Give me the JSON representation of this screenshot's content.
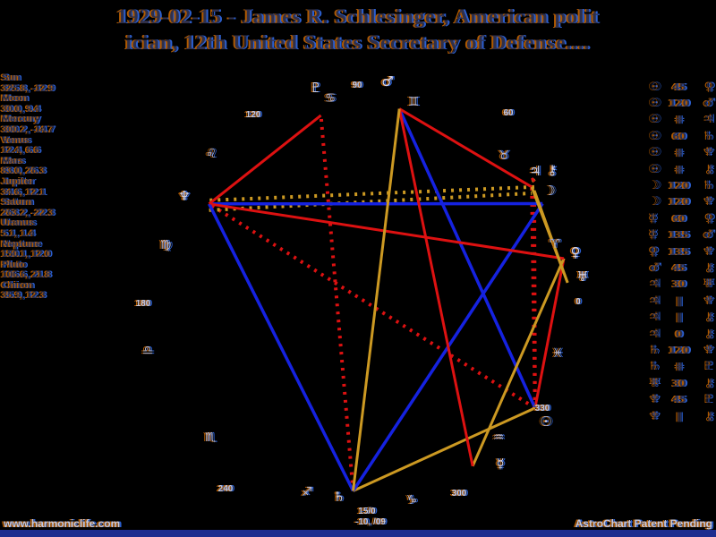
{
  "title": {
    "line1": "1929-02-15 - James R. Schlesinger, American polit",
    "line2": "ician, 12th United States Secretary of Defense...."
  },
  "footer": {
    "left": "www.harmoniclife.com",
    "right": "AstroChart Patent Pending"
  },
  "colors": {
    "background": "#000000",
    "trine_blue": "#1522e0",
    "soft_gold": "#cc9922",
    "hard_red": "#dd1111",
    "bottom_bar_navy": "#1e2d8f",
    "anaglyph_left_fringe": "#b05a00",
    "anaglyph_right_fringe": "#2b5fd0"
  },
  "chart_data": {
    "type": "polar-aspect-wheel",
    "title": "Natal planet longitudes (degrees) with aspect lines",
    "angle_unit": "ecliptic longitude, 0° at right, counterclockwise",
    "degree_labels": [
      "0",
      "60",
      "90",
      "120",
      "180",
      "240",
      "300",
      "330"
    ],
    "zodiac_signs": [
      "♈",
      "♉",
      "♊",
      "♋",
      "♌",
      "♍",
      "♎",
      "♏",
      "♐",
      "♑",
      "♒",
      "♓"
    ],
    "planets": [
      {
        "name": "Sun",
        "glyph": "☉",
        "lon": 325.8,
        "dec": -12.9
      },
      {
        "name": "Moon",
        "glyph": "☽",
        "lon": 30.0,
        "dec": 9.4
      },
      {
        "name": "Mercury",
        "glyph": "☿",
        "lon": 300.2,
        "dec": -14.7
      },
      {
        "name": "Venus",
        "glyph": "♀",
        "lon": 12.4,
        "dec": 6.6
      },
      {
        "name": "Mars",
        "glyph": "♂",
        "lon": 83.0,
        "dec": 26.3
      },
      {
        "name": "Jupiter",
        "glyph": "♃",
        "lon": 34.6,
        "dec": 12.1
      },
      {
        "name": "Saturn",
        "glyph": "♄",
        "lon": 263.2,
        "dec": -22.3
      },
      {
        "name": "Uranus",
        "glyph": "♅",
        "lon": 5.1,
        "dec": 1.4
      },
      {
        "name": "Neptune",
        "glyph": "♆",
        "lon": 150.1,
        "dec": 12.0
      },
      {
        "name": "Pluto",
        "glyph": "♇",
        "lon": 106.6,
        "dec": 21.8
      },
      {
        "name": "Chiron",
        "glyph": "⚷",
        "lon": 35.9,
        "dec": 12.3
      }
    ],
    "aspects": [
      {
        "p1": "Sun",
        "aspect": "45",
        "p2": "Venus",
        "style": "red"
      },
      {
        "p1": "Sun",
        "aspect": "120",
        "p2": "Mars",
        "style": "blue"
      },
      {
        "p1": "Sun",
        "aspect": "⋕",
        "p2": "Jupiter",
        "style": "red-dot"
      },
      {
        "p1": "Sun",
        "aspect": "60",
        "p2": "Saturn",
        "style": "gold"
      },
      {
        "p1": "Sun",
        "aspect": "⋕",
        "p2": "Neptune",
        "style": "red-dot"
      },
      {
        "p1": "Sun",
        "aspect": "⋕",
        "p2": "Chiron",
        "style": "red-dot"
      },
      {
        "p1": "Moon",
        "aspect": "120",
        "p2": "Saturn",
        "style": "blue"
      },
      {
        "p1": "Moon",
        "aspect": "120",
        "p2": "Neptune",
        "style": "blue"
      },
      {
        "p1": "Mercury",
        "aspect": "60",
        "p2": "Venus",
        "style": "gold"
      },
      {
        "p1": "Mercury",
        "aspect": "135",
        "p2": "Mars",
        "style": "red"
      },
      {
        "p1": "Venus",
        "aspect": "135",
        "p2": "Neptune",
        "style": "red"
      },
      {
        "p1": "Mars",
        "aspect": "45",
        "p2": "Chiron",
        "style": "red"
      },
      {
        "p1": "Jupiter",
        "aspect": "30",
        "p2": "Uranus",
        "style": "gold"
      },
      {
        "p1": "Jupiter",
        "aspect": "∥",
        "p2": "Neptune",
        "style": "gold-dot"
      },
      {
        "p1": "Jupiter",
        "aspect": "∥",
        "p2": "Chiron",
        "style": "gold-dot"
      },
      {
        "p1": "Jupiter",
        "aspect": "0",
        "p2": "Chiron",
        "style": "red"
      },
      {
        "p1": "Saturn",
        "aspect": "120",
        "p2": "Neptune",
        "style": "blue"
      },
      {
        "p1": "Saturn",
        "aspect": "⋕",
        "p2": "Pluto",
        "style": "red-dot"
      },
      {
        "p1": "Uranus",
        "aspect": "30",
        "p2": "Chiron",
        "style": "gold"
      },
      {
        "p1": "Neptune",
        "aspect": "45",
        "p2": "Pluto",
        "style": "red"
      },
      {
        "p1": "Neptune",
        "aspect": "∥",
        "p2": "Chiron",
        "style": "gold-dot"
      }
    ],
    "extra_lines": [
      {
        "p1": "Mars",
        "p2": "Saturn",
        "style": "gold"
      }
    ],
    "bottom_point_label": {
      "line1": "15/0",
      "line2": "-10, /09"
    }
  }
}
